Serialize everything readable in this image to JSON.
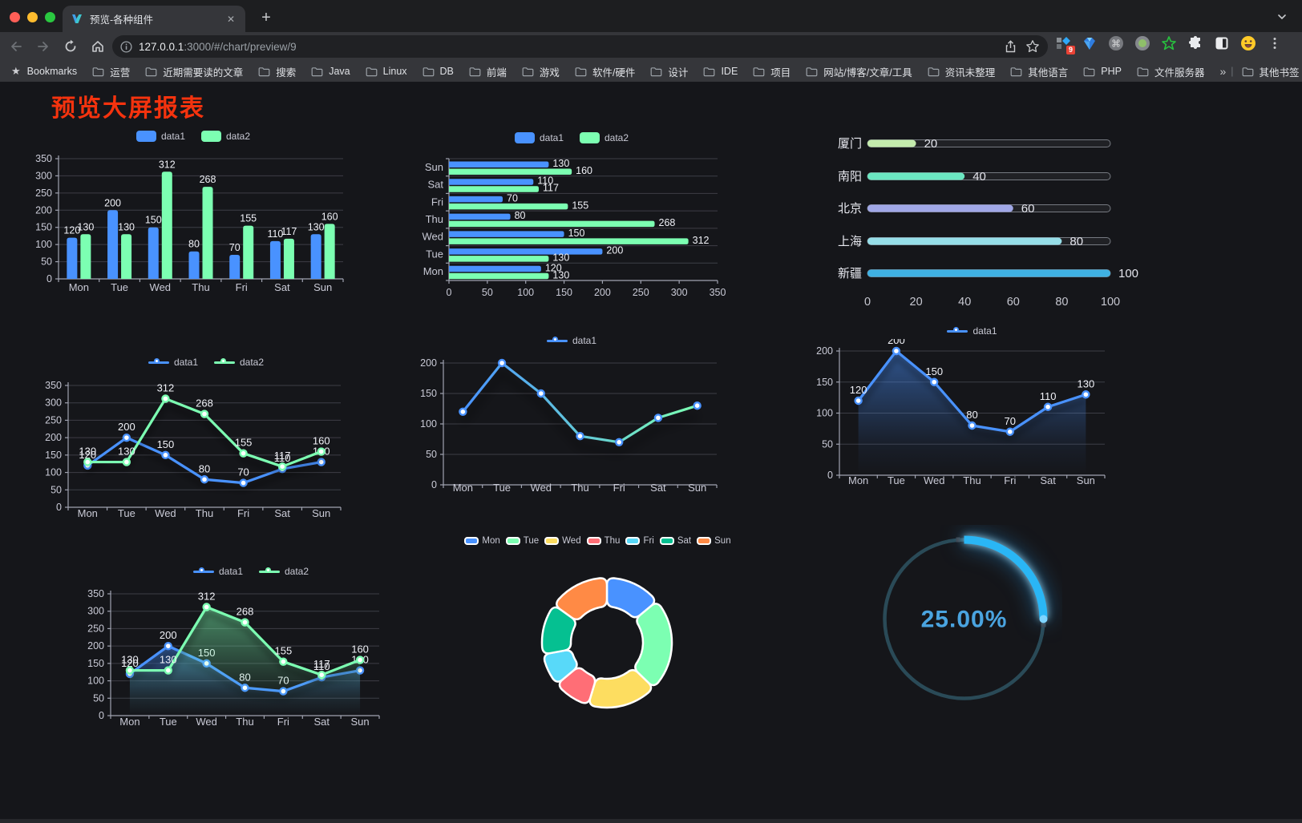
{
  "browser": {
    "tab_title": "预览-各种组件",
    "url_host": "127.0.0.1",
    "url_rest": ":3000/#/chart/preview/9",
    "bookmarks_label": "Bookmarks",
    "bookmarks": [
      "运营",
      "近期需要读的文章",
      "搜索",
      "Java",
      "Linux",
      "DB",
      "前端",
      "游戏",
      "软件/硬件",
      "设计",
      "IDE",
      "项目",
      "网站/博客/文章/工具",
      "资讯未整理",
      "其他语言",
      "PHP",
      "文件服务器"
    ],
    "overflow_chevron": "»",
    "other_bookmarks": "其他书签",
    "extension_badge": "9"
  },
  "page": {
    "title": "预览大屏报表",
    "title_color": "#f5330e"
  },
  "colors": {
    "series_blue": "#4992ff",
    "series_green": "#7cffb2",
    "grid_line": "#3d3e46",
    "axis_line": "#a0a3b1",
    "axis_label": "#c9cad6",
    "value_label": "#f0f1f7",
    "legend_text": "#c8c9d4",
    "background": "#15161a",
    "gauge_arc": "#2ab6f5",
    "gauge_track": "#2a4a57",
    "gauge_text": "#4aa4e0"
  },
  "chart_data": [
    {
      "id": "bar-vertical",
      "type": "bar",
      "categories": [
        "Mon",
        "Tue",
        "Wed",
        "Thu",
        "Fri",
        "Sat",
        "Sun"
      ],
      "series": [
        {
          "name": "data1",
          "color": "#4992ff",
          "values": [
            120,
            200,
            150,
            80,
            70,
            110,
            130
          ]
        },
        {
          "name": "data2",
          "color": "#7cffb2",
          "values": [
            130,
            130,
            312,
            268,
            155,
            117,
            160
          ]
        }
      ],
      "ylim": [
        0,
        350
      ],
      "ytick": 50,
      "grid": true,
      "legend_position": "top"
    },
    {
      "id": "bar-horizontal",
      "type": "bar",
      "orientation": "horizontal",
      "categories": [
        "Mon",
        "Tue",
        "Wed",
        "Thu",
        "Fri",
        "Sat",
        "Sun"
      ],
      "series": [
        {
          "name": "data1",
          "color": "#4992ff",
          "values": [
            120,
            200,
            150,
            80,
            70,
            110,
            130
          ]
        },
        {
          "name": "data2",
          "color": "#7cffb2",
          "values": [
            130,
            130,
            312,
            268,
            155,
            117,
            160
          ]
        }
      ],
      "xlim": [
        0,
        350
      ],
      "xtick": 50,
      "grid": true,
      "legend_position": "top"
    },
    {
      "id": "progress-bars",
      "type": "bar",
      "variant": "progress",
      "max": 100,
      "xticks": [
        0,
        20,
        40,
        60,
        80,
        100
      ],
      "items": [
        {
          "label": "厦门",
          "value": 20,
          "color": "#c4ebad"
        },
        {
          "label": "南阳",
          "value": 40,
          "color": "#6be6c1"
        },
        {
          "label": "北京",
          "value": 60,
          "color": "#a0a7e6"
        },
        {
          "label": "上海",
          "value": 80,
          "color": "#96dee8"
        },
        {
          "label": "新疆",
          "value": 100,
          "color": "#3fb1e3"
        }
      ]
    },
    {
      "id": "line-basic",
      "type": "line",
      "categories": [
        "Mon",
        "Tue",
        "Wed",
        "Thu",
        "Fri",
        "Sat",
        "Sun"
      ],
      "series": [
        {
          "name": "data1",
          "color": "#4992ff",
          "values": [
            120,
            200,
            150,
            80,
            70,
            110,
            130
          ]
        },
        {
          "name": "data2",
          "color": "#7cffb2",
          "values": [
            130,
            130,
            312,
            268,
            155,
            117,
            160
          ]
        }
      ],
      "ylim": [
        0,
        350
      ],
      "ytick": 50,
      "point_labels": true,
      "legend_position": "top"
    },
    {
      "id": "line-gradient",
      "type": "line",
      "categories": [
        "Mon",
        "Tue",
        "Wed",
        "Thu",
        "Fri",
        "Sat",
        "Sun"
      ],
      "series": [
        {
          "name": "data1",
          "color": "#4992ff",
          "color_gradient": [
            "#4992ff",
            "#7cffb2"
          ],
          "values": [
            120,
            200,
            150,
            80,
            70,
            110,
            130
          ]
        }
      ],
      "ylim": [
        0,
        200
      ],
      "ytick": 50,
      "point_labels": false,
      "line_shadow": true,
      "legend_position": "top"
    },
    {
      "id": "area-single",
      "type": "area",
      "categories": [
        "Mon",
        "Tue",
        "Wed",
        "Thu",
        "Fri",
        "Sat",
        "Sun"
      ],
      "series": [
        {
          "name": "data1",
          "color": "#4992ff",
          "area": true,
          "values": [
            120,
            200,
            150,
            80,
            70,
            110,
            130
          ]
        }
      ],
      "ylim": [
        0,
        200
      ],
      "ytick": 50,
      "point_labels": true,
      "legend_position": "top"
    },
    {
      "id": "area-double",
      "type": "area",
      "categories": [
        "Mon",
        "Tue",
        "Wed",
        "Thu",
        "Fri",
        "Sat",
        "Sun"
      ],
      "series": [
        {
          "name": "data1",
          "color": "#4992ff",
          "area": true,
          "values": [
            120,
            200,
            150,
            80,
            70,
            110,
            130
          ]
        },
        {
          "name": "data2",
          "color": "#7cffb2",
          "area": true,
          "values": [
            130,
            130,
            312,
            268,
            155,
            117,
            160
          ]
        }
      ],
      "ylim": [
        0,
        350
      ],
      "ytick": 50,
      "point_labels": true,
      "legend_position": "top"
    },
    {
      "id": "pie-donut",
      "type": "pie",
      "donut": true,
      "inner_radius_ratio": 0.56,
      "labels": [
        "Mon",
        "Tue",
        "Wed",
        "Thu",
        "Fri",
        "Sat",
        "Sun"
      ],
      "values": [
        120,
        200,
        150,
        80,
        70,
        110,
        130
      ],
      "colors": [
        "#4992ff",
        "#7cffb2",
        "#fddd60",
        "#ff6e76",
        "#58d9f9",
        "#05c091",
        "#ff8a45"
      ],
      "legend_position": "top"
    },
    {
      "id": "gauge",
      "type": "pie",
      "variant": "gauge-progress",
      "value": 25,
      "max": 100,
      "label": "25.00%"
    }
  ]
}
